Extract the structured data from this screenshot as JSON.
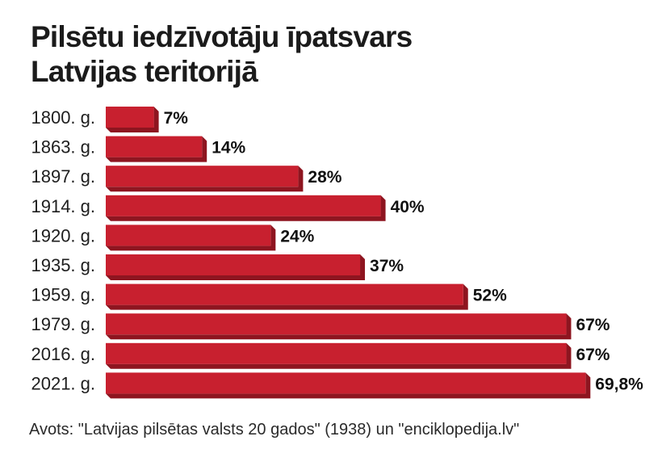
{
  "chart_data": {
    "type": "bar",
    "orientation": "horizontal",
    "title": [
      "Pilsētu iedzīvotāju īpatsvars",
      "Latvijas teritorijā"
    ],
    "categories": [
      "1800. g.",
      "1863. g.",
      "1897. g.",
      "1914. g.",
      "1920. g.",
      "1935. g.",
      "1959. g.",
      "1979. g.",
      "2016. g.",
      "2021. g."
    ],
    "values": [
      7,
      14,
      28,
      40,
      24,
      37,
      52,
      67,
      67,
      69.8
    ],
    "value_labels": [
      "7%",
      "14%",
      "28%",
      "40%",
      "24%",
      "37%",
      "52%",
      "67%",
      "67%",
      "69,8%"
    ],
    "unit": "%",
    "xlim": [
      0,
      70
    ],
    "grid": false,
    "legend": "none",
    "bar_color": "#c8202f",
    "bar_shadow_color": "#8e1520"
  },
  "source": "Avots: \"Latvijas pilsētas valsts 20 gados\" (1938) un \"enciklopedija.lv\""
}
